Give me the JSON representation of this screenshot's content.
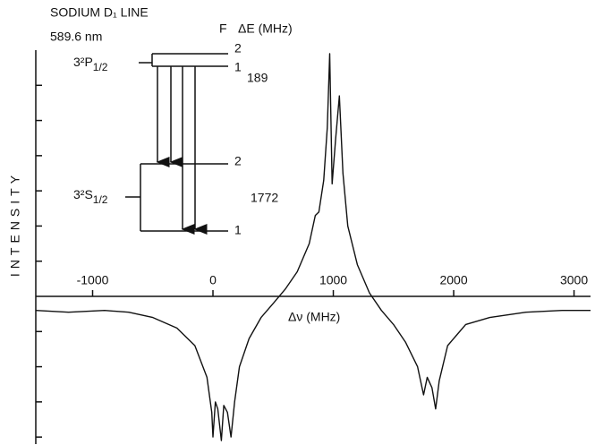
{
  "chart_data": {
    "type": "line",
    "title": "SODIUM D₁ LINE",
    "subtitle": "589.6 nm",
    "x_label": "Δν (MHz)",
    "y_label": "INTENSITY",
    "inset": {
      "f_header": "F",
      "de_header": "ΔE (MHz)",
      "upper_term": "3²P",
      "upper_j": "1/2",
      "lower_term": "3²S",
      "lower_j": "1/2",
      "upper_f": [
        "2",
        "1"
      ],
      "lower_f": [
        "2",
        "1"
      ],
      "upper_split": "189",
      "lower_split": "1772"
    },
    "x": [
      -1472,
      -1200,
      -900,
      -700,
      -500,
      -300,
      -150,
      -50,
      -10,
      0,
      20,
      40,
      70,
      90,
      120,
      150,
      180,
      220,
      300,
      400,
      500,
      600,
      700,
      800,
      850,
      880,
      920,
      950,
      970,
      990,
      1020,
      1050,
      1080,
      1120,
      1200,
      1300,
      1400,
      1500,
      1600,
      1700,
      1750,
      1780,
      1820,
      1850,
      1880,
      1950,
      2100,
      2300,
      2600,
      2900,
      3137
    ],
    "series": [
      {
        "color": "#111111",
        "values": [
          -0.4,
          -0.45,
          -0.4,
          -0.45,
          -0.6,
          -0.9,
          -1.4,
          -2.3,
          -3.3,
          -4.0,
          -3.0,
          -3.2,
          -4.1,
          -3.1,
          -3.3,
          -4.0,
          -3.0,
          -2.0,
          -1.2,
          -0.6,
          -0.2,
          0.2,
          0.7,
          1.5,
          2.3,
          2.4,
          3.3,
          4.8,
          6.9,
          3.2,
          4.5,
          5.7,
          3.5,
          2.0,
          0.9,
          0.1,
          -0.4,
          -0.8,
          -1.3,
          -2.0,
          -2.8,
          -2.3,
          -2.6,
          -3.2,
          -2.4,
          -1.4,
          -0.8,
          -0.6,
          -0.45,
          -0.4,
          -0.4
        ]
      }
    ],
    "xlim": [
      -1472,
      3137
    ],
    "xticks": [
      -1000,
      0,
      1000,
      2000,
      3000
    ],
    "ylim": [
      -4.2,
      7.0
    ],
    "yticks": [
      -4,
      -3,
      -2,
      -1,
      1,
      2,
      3,
      4,
      5,
      6
    ]
  }
}
